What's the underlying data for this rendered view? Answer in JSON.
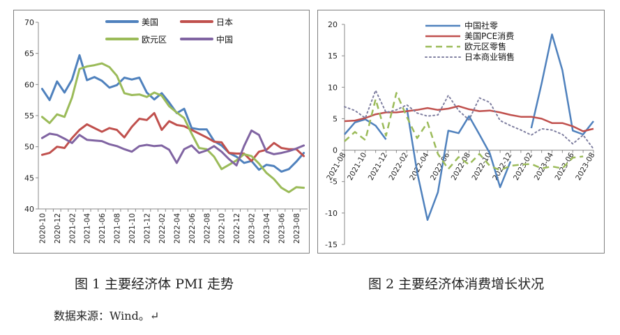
{
  "chart_data": [
    {
      "type": "line",
      "title": "",
      "caption": "图 1  主要经济体 PMI 走势",
      "xlabel": "",
      "ylabel": "",
      "ylim": [
        40,
        70
      ],
      "yticks": [
        40,
        45,
        50,
        55,
        60,
        65,
        70
      ],
      "x": [
        "2020-10",
        "2020-11",
        "2020-12",
        "2021-01",
        "2021-02",
        "2021-03",
        "2021-04",
        "2021-05",
        "2021-06",
        "2021-07",
        "2021-08",
        "2021-09",
        "2021-10",
        "2021-11",
        "2021-12",
        "2022-01",
        "2022-02",
        "2022-03",
        "2022-04",
        "2022-05",
        "2022-06",
        "2022-07",
        "2022-08",
        "2022-09",
        "2022-10",
        "2022-11",
        "2022-12",
        "2023-01",
        "2023-02",
        "2023-03",
        "2023-04",
        "2023-05",
        "2023-06",
        "2023-07",
        "2023-08",
        "2023-09"
      ],
      "xtick_labels": [
        "2020-10",
        "2020-12",
        "2021-02",
        "2021-04",
        "2021-06",
        "2021-08",
        "2021-10",
        "2021-12",
        "2022-02",
        "2022-04",
        "2022-06",
        "2022-08",
        "2022-10",
        "2022-12",
        "2023-02",
        "2023-04",
        "2023-06",
        "2023-08"
      ],
      "series": [
        {
          "name": "美国",
          "color": "#4f81bd",
          "values": [
            59.3,
            57.5,
            60.5,
            58.7,
            60.8,
            64.7,
            60.7,
            61.2,
            60.6,
            59.5,
            59.9,
            61.1,
            60.8,
            61.1,
            58.7,
            57.6,
            58.6,
            57.1,
            55.4,
            56.1,
            53.0,
            52.8,
            52.8,
            50.9,
            50.2,
            49.0,
            48.4,
            47.4,
            47.7,
            46.3,
            47.1,
            46.9,
            46.0,
            46.4,
            47.6,
            49.0
          ]
        },
        {
          "name": "日本",
          "color": "#c0504d",
          "values": [
            48.7,
            49.0,
            50.0,
            49.8,
            51.4,
            52.7,
            53.6,
            53.0,
            52.4,
            53.0,
            52.7,
            51.5,
            53.2,
            54.5,
            54.3,
            55.4,
            52.7,
            54.1,
            53.5,
            53.3,
            52.7,
            52.1,
            51.5,
            50.8,
            50.7,
            49.0,
            48.9,
            48.9,
            47.7,
            49.2,
            49.5,
            50.6,
            49.8,
            49.6,
            49.6,
            48.5
          ]
        },
        {
          "name": "欧元区",
          "color": "#9bbb59",
          "values": [
            54.8,
            53.8,
            55.2,
            54.8,
            57.9,
            62.5,
            62.9,
            63.1,
            63.4,
            62.8,
            61.4,
            58.6,
            58.3,
            58.4,
            58.0,
            58.7,
            58.2,
            56.5,
            55.5,
            54.6,
            52.1,
            49.8,
            49.6,
            48.4,
            46.4,
            47.1,
            47.8,
            48.8,
            48.5,
            47.3,
            45.8,
            44.8,
            43.4,
            42.7,
            43.5,
            43.4
          ]
        },
        {
          "name": "中国",
          "color": "#8064a2",
          "values": [
            51.4,
            52.1,
            51.9,
            51.3,
            50.6,
            51.9,
            51.1,
            51.0,
            50.9,
            50.4,
            50.1,
            49.6,
            49.2,
            50.1,
            50.3,
            50.1,
            50.2,
            49.5,
            47.4,
            49.6,
            50.2,
            49.0,
            49.4,
            50.1,
            49.2,
            48.0,
            47.0,
            50.1,
            52.6,
            51.9,
            49.2,
            48.8,
            49.0,
            49.3,
            49.7,
            50.2
          ]
        }
      ],
      "legend": [
        {
          "name": "美国",
          "color": "#4f81bd"
        },
        {
          "name": "日本",
          "color": "#c0504d"
        },
        {
          "name": "欧元区",
          "color": "#9bbb59"
        },
        {
          "name": "中国",
          "color": "#8064a2"
        }
      ]
    },
    {
      "type": "line",
      "title": "",
      "caption": "图 2  主要经济体消费增长状况",
      "xlabel": "",
      "ylabel": "",
      "ylim": [
        -15,
        20
      ],
      "yticks": [
        -15,
        -10,
        -5,
        0,
        5,
        10,
        15,
        20
      ],
      "x": [
        "2021-08",
        "2021-09",
        "2021-10",
        "2021-11",
        "2021-12",
        "2022-01",
        "2022-02",
        "2022-03",
        "2022-04",
        "2022-05",
        "2022-06",
        "2022-07",
        "2022-08",
        "2022-09",
        "2022-10",
        "2022-11",
        "2022-12",
        "2023-01",
        "2023-02",
        "2023-03",
        "2023-04",
        "2023-05",
        "2023-06",
        "2023-07",
        "2023-08"
      ],
      "xtick_labels": [
        "2021-08",
        "2021-10",
        "2021-12",
        "2022-02",
        "2022-04",
        "2022-06",
        "2022-08",
        "2022-10",
        "2022-12",
        "2023-02",
        "2023-04",
        "2023-06",
        "2023-08"
      ],
      "series": [
        {
          "name": "中国社零",
          "color": "#4f81bd",
          "style": "solid",
          "values": [
            2.5,
            4.4,
            4.9,
            3.9,
            1.7,
            null,
            6.7,
            -3.5,
            -11.1,
            -6.7,
            3.1,
            2.7,
            5.4,
            2.5,
            -0.5,
            -5.9,
            -1.8,
            null,
            3.5,
            10.6,
            18.4,
            12.7,
            3.1,
            2.5,
            4.6
          ]
        },
        {
          "name": "美国PCE消费",
          "color": "#c0504d",
          "style": "solid",
          "values": [
            4.6,
            4.7,
            5.1,
            5.7,
            6.0,
            6.0,
            6.2,
            6.4,
            6.7,
            6.4,
            6.6,
            7.0,
            6.5,
            6.2,
            6.3,
            6.0,
            5.6,
            5.3,
            5.3,
            5.0,
            4.3,
            4.3,
            3.8,
            3.0,
            3.4
          ]
        },
        {
          "name": "欧元区零售",
          "color": "#9bbb59",
          "style": "dashed",
          "values": [
            1.4,
            2.9,
            1.6,
            8.1,
            2.3,
            9.1,
            5.3,
            1.9,
            4.4,
            -0.6,
            -3.0,
            -1.1,
            -2.3,
            -0.6,
            -2.5,
            -3.2,
            -2.5,
            -2.3,
            -2.2,
            -2.9,
            -2.6,
            -2.9,
            -1.2,
            -1.0,
            null
          ]
        },
        {
          "name": "日本商业销售",
          "color": "#7f7fa0",
          "style": "dotted",
          "values": [
            6.9,
            6.3,
            5.1,
            9.5,
            6.0,
            6.4,
            7.2,
            5.9,
            5.4,
            5.6,
            8.7,
            6.3,
            4.8,
            8.3,
            7.6,
            4.7,
            3.9,
            3.2,
            2.4,
            3.4,
            3.2,
            2.5,
            1.0,
            2.4,
            0.2
          ]
        }
      ],
      "legend": [
        {
          "name": "中国社零",
          "color": "#4f81bd"
        },
        {
          "name": "美国PCE消费",
          "color": "#c0504d"
        },
        {
          "name": "欧元区零售",
          "color": "#9bbb59"
        },
        {
          "name": "日本商业销售",
          "color": "#7f7fa0"
        }
      ]
    }
  ],
  "source_note": "数据来源：Wind。↵"
}
